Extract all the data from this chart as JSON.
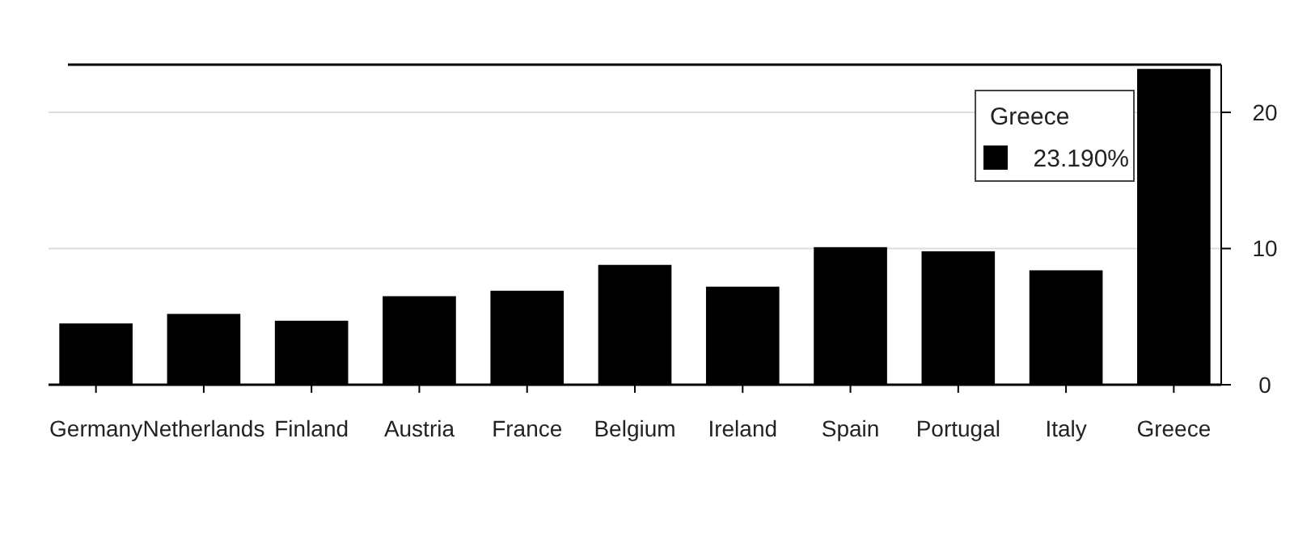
{
  "chart_data": {
    "type": "bar",
    "categories": [
      "Germany",
      "Netherlands",
      "Finland",
      "Austria",
      "France",
      "Belgium",
      "Ireland",
      "Spain",
      "Portugal",
      "Italy",
      "Greece"
    ],
    "values": [
      4.5,
      5.2,
      4.7,
      6.5,
      6.9,
      8.8,
      7.2,
      10.1,
      9.8,
      8.4,
      23.19
    ],
    "color": "#000000",
    "ylim": [
      0,
      23.5
    ],
    "yticks": [
      0,
      10,
      20
    ],
    "grid": "y",
    "annotations": [
      "Greece",
      "23.190%"
    ]
  }
}
